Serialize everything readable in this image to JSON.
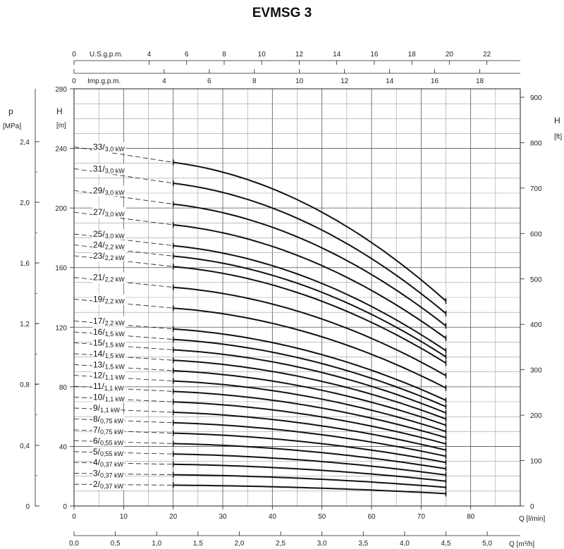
{
  "chart_data": {
    "type": "line",
    "title": "EVMSG 3",
    "x_axis": {
      "label": "Q [l/min]",
      "range": [
        0,
        90
      ],
      "ticks": [
        0,
        10,
        20,
        30,
        40,
        50,
        60,
        70,
        80
      ]
    },
    "x_axis_secondary": {
      "label": "Q [m³/h]",
      "range": [
        0,
        5.4
      ],
      "ticks": [
        "0,0",
        "0,5",
        "1,0",
        "1,5",
        "2,0",
        "2,5",
        "3,0",
        "3,5",
        "4,0",
        "4,5",
        "5,0"
      ]
    },
    "x_axis_top_1": {
      "label": "U.S.g.p.m.",
      "ticks": [
        "0",
        "4",
        "6",
        "8",
        "10",
        "12",
        "14",
        "16",
        "18",
        "20",
        "22"
      ]
    },
    "x_axis_top_2": {
      "label": "Imp.g.p.m.",
      "ticks": [
        "0",
        "4",
        "6",
        "8",
        "10",
        "12",
        "14",
        "16",
        "18"
      ]
    },
    "y_axis": {
      "label": "H",
      "unit": "[m]",
      "range": [
        0,
        280
      ],
      "ticks": [
        0,
        40,
        80,
        120,
        160,
        200,
        240,
        280
      ]
    },
    "y_axis_left_outer": {
      "label": "p",
      "unit": "[MPa]",
      "ticks": [
        "0",
        "0,4",
        "0,8",
        "1,2",
        "1,6",
        "2,0",
        "2,4"
      ]
    },
    "y_axis_right": {
      "label": "H",
      "unit": "[ft]",
      "ticks": [
        "0",
        "100",
        "200",
        "300",
        "400",
        "500",
        "600",
        "700",
        "800",
        "900"
      ]
    },
    "grid": true,
    "operating_range_q": [
      20,
      75
    ],
    "series": [
      {
        "name": "33",
        "power": "3,0 kW",
        "h_at_q20": 230.6,
        "h_at_q75": 137.6
      },
      {
        "name": "31",
        "power": "3,0 kW",
        "h_at_q20": 216.6,
        "h_at_q75": 129.2
      },
      {
        "name": "29",
        "power": "3,0 kW",
        "h_at_q20": 202.6,
        "h_at_q75": 120.9
      },
      {
        "name": "27",
        "power": "3,0 kW",
        "h_at_q20": 188.7,
        "h_at_q75": 112.6
      },
      {
        "name": "25",
        "power": "3,0 kW",
        "h_at_q20": 174.7,
        "h_at_q75": 104.2
      },
      {
        "name": "24",
        "power": "2,2 kW",
        "h_at_q20": 167.7,
        "h_at_q75": 100.1
      },
      {
        "name": "23",
        "power": "2,2 kW",
        "h_at_q20": 160.7,
        "h_at_q75": 95.9
      },
      {
        "name": "21",
        "power": "2,2 kW",
        "h_at_q20": 146.8,
        "h_at_q75": 87.5
      },
      {
        "name": "19",
        "power": "2,2 kW",
        "h_at_q20": 132.8,
        "h_at_q75": 79.2
      },
      {
        "name": "17",
        "power": "2,2 kW",
        "h_at_q20": 118.8,
        "h_at_q75": 70.9
      },
      {
        "name": "16",
        "power": "1,5 kW",
        "h_at_q20": 111.8,
        "h_at_q75": 66.7
      },
      {
        "name": "15",
        "power": "1,5 kW",
        "h_at_q20": 104.8,
        "h_at_q75": 62.5
      },
      {
        "name": "14",
        "power": "1,5 kW",
        "h_at_q20": 97.8,
        "h_at_q75": 58.4
      },
      {
        "name": "13",
        "power": "1,5 kW",
        "h_at_q20": 90.8,
        "h_at_q75": 54.2
      },
      {
        "name": "12",
        "power": "1,1 kW",
        "h_at_q20": 83.9,
        "h_at_q75": 50.0
      },
      {
        "name": "11",
        "power": "1,1 kW",
        "h_at_q20": 76.9,
        "h_at_q75": 45.9
      },
      {
        "name": "10",
        "power": "1,1 kW",
        "h_at_q20": 69.9,
        "h_at_q75": 41.7
      },
      {
        "name": "9",
        "power": "1,1 kW",
        "h_at_q20": 62.9,
        "h_at_q75": 37.5
      },
      {
        "name": "8",
        "power": "0,75 kW",
        "h_at_q20": 55.9,
        "h_at_q75": 33.4
      },
      {
        "name": "7",
        "power": "0,75 kW",
        "h_at_q20": 48.9,
        "h_at_q75": 29.2
      },
      {
        "name": "6",
        "power": "0,55 kW",
        "h_at_q20": 41.9,
        "h_at_q75": 25.0
      },
      {
        "name": "5",
        "power": "0,55 kW",
        "h_at_q20": 34.9,
        "h_at_q75": 20.8
      },
      {
        "name": "4",
        "power": "0,37 kW",
        "h_at_q20": 28.0,
        "h_at_q75": 16.7
      },
      {
        "name": "3",
        "power": "0,37 kW",
        "h_at_q20": 21.0,
        "h_at_q75": 12.5
      },
      {
        "name": "2",
        "power": "0,37 kW",
        "h_at_q20": 14.0,
        "h_at_q75": 8.3
      }
    ]
  }
}
